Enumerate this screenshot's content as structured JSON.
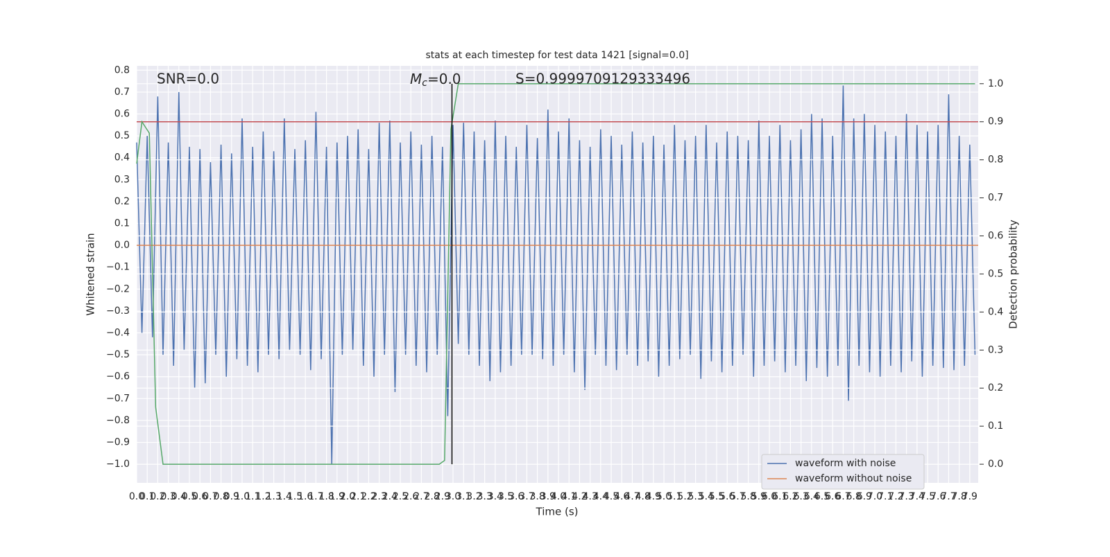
{
  "chart_data": {
    "type": "line",
    "title": "stats at each timestep for test data 1421 [signal=0.0]",
    "xlabel": "Time (s)",
    "ylabel": "Whitened strain",
    "y2label": "Detection probability",
    "annotations": [
      "SNR=0.0",
      {
        "main": "M",
        "sub": "c",
        "rest": "=0.0"
      },
      "S=0.9999709129333496"
    ],
    "xlim": [
      0,
      7.98
    ],
    "ylim": [
      -1.085,
      0.82
    ],
    "y2lim": [
      -0.049,
      1.047
    ],
    "xticks": [
      {
        "value": 0,
        "label": "0.0"
      },
      0.1,
      0.2,
      0.3,
      0.4,
      0.5,
      0.6,
      0.7,
      0.8,
      0.9,
      {
        "value": 1,
        "label": "1.0"
      },
      1.1,
      1.2,
      1.3,
      1.4,
      1.5,
      1.6,
      1.7,
      1.8,
      1.9,
      {
        "value": 2,
        "label": "2.0"
      },
      2.1,
      2.2,
      2.3,
      2.4,
      2.5,
      2.6,
      2.7,
      2.8,
      2.9,
      {
        "value": 3,
        "label": "3.0"
      },
      3.1,
      3.2,
      3.3,
      3.4,
      3.5,
      3.6,
      3.7,
      3.8,
      3.9,
      {
        "value": 4,
        "label": "4.0"
      },
      4.1,
      4.2,
      4.3,
      4.4,
      4.5,
      4.6,
      4.7,
      4.8,
      4.9,
      {
        "value": 5,
        "label": "5.0"
      },
      5.1,
      5.2,
      5.3,
      5.4,
      5.5,
      5.6,
      5.7,
      5.8,
      5.9,
      {
        "value": 6,
        "label": "6.0"
      },
      6.1,
      6.2,
      6.3,
      6.4,
      6.5,
      6.6,
      6.7,
      6.8,
      6.9,
      {
        "value": 7,
        "label": "7.0"
      },
      7.1,
      7.2,
      7.3,
      7.4,
      7.5,
      7.6,
      7.7,
      7.8,
      7.9
    ],
    "yticks": [
      0.8,
      0.7,
      0.6,
      0.5,
      0.4,
      0.3,
      0.2,
      0.1,
      {
        "value": 0,
        "label": "0.0"
      },
      {
        "value": -0.1,
        "label": "−0.1"
      },
      {
        "value": -0.2,
        "label": "−0.2"
      },
      {
        "value": -0.3,
        "label": "−0.3"
      },
      {
        "value": -0.4,
        "label": "−0.4"
      },
      {
        "value": -0.5,
        "label": "−0.5"
      },
      {
        "value": -0.6,
        "label": "−0.6"
      },
      {
        "value": -0.7,
        "label": "−0.7"
      },
      {
        "value": -0.8,
        "label": "−0.8"
      },
      {
        "value": -0.9,
        "label": "−0.9"
      },
      {
        "value": -1,
        "label": "−1.0"
      }
    ],
    "y2ticks": [
      {
        "value": 1,
        "label": "1.0"
      },
      0.9,
      0.8,
      0.7,
      0.6,
      0.5,
      0.4,
      0.3,
      0.2,
      0.1,
      {
        "value": 0,
        "label": "0.0"
      }
    ],
    "grid": true,
    "legend": "lower right",
    "series": [
      {
        "name": "waveform with noise",
        "color": "#4c72b0",
        "x": [
          0,
          0.05,
          0.1,
          0.15,
          0.2,
          0.25,
          0.3,
          0.35,
          0.4,
          0.45,
          0.5,
          0.55,
          0.6,
          0.65,
          0.7,
          0.75,
          0.8,
          0.85,
          0.9,
          0.95,
          1,
          1.05,
          1.1,
          1.15,
          1.2,
          1.25,
          1.3,
          1.35,
          1.4,
          1.45,
          1.5,
          1.55,
          1.6,
          1.65,
          1.7,
          1.75,
          1.8,
          1.85,
          1.9,
          1.95,
          2,
          2.05,
          2.1,
          2.15,
          2.2,
          2.25,
          2.3,
          2.35,
          2.4,
          2.45,
          2.5,
          2.55,
          2.6,
          2.65,
          2.7,
          2.75,
          2.8,
          2.85,
          2.9,
          2.95,
          3,
          3.05,
          3.1,
          3.15,
          3.2,
          3.25,
          3.3,
          3.35,
          3.4,
          3.45,
          3.5,
          3.55,
          3.6,
          3.65,
          3.7,
          3.75,
          3.8,
          3.85,
          3.9,
          3.95,
          4,
          4.05,
          4.1,
          4.15,
          4.2,
          4.25,
          4.3,
          4.35,
          4.4,
          4.45,
          4.5,
          4.55,
          4.6,
          4.65,
          4.7,
          4.75,
          4.8,
          4.85,
          4.9,
          4.95,
          5,
          5.05,
          5.1,
          5.15,
          5.2,
          5.25,
          5.3,
          5.35,
          5.4,
          5.45,
          5.5,
          5.55,
          5.6,
          5.65,
          5.7,
          5.75,
          5.8,
          5.85,
          5.9,
          5.95,
          6,
          6.05,
          6.1,
          6.15,
          6.2,
          6.25,
          6.3,
          6.35,
          6.4,
          6.45,
          6.5,
          6.55,
          6.6,
          6.65,
          6.7,
          6.75,
          6.8,
          6.85,
          6.9,
          6.95,
          7,
          7.05,
          7.1,
          7.15,
          7.2,
          7.25,
          7.3,
          7.35,
          7.4,
          7.45,
          7.5,
          7.55,
          7.6,
          7.65,
          7.7,
          7.75,
          7.8,
          7.85,
          7.9,
          7.95
        ],
        "values": [
          0.47,
          -0.4,
          0.5,
          -0.42,
          0.68,
          -0.5,
          0.47,
          -0.55,
          0.7,
          -0.48,
          0.45,
          -0.65,
          0.44,
          -0.63,
          0.38,
          -0.5,
          0.46,
          -0.6,
          0.42,
          -0.52,
          0.58,
          -0.55,
          0.45,
          -0.58,
          0.52,
          -0.5,
          0.43,
          -0.52,
          0.58,
          -0.48,
          0.44,
          -0.5,
          0.48,
          -0.57,
          0.61,
          -0.52,
          0.45,
          -1.0,
          0.47,
          -0.5,
          0.5,
          -0.48,
          0.53,
          -0.55,
          0.44,
          -0.6,
          0.56,
          -0.5,
          0.57,
          -0.67,
          0.47,
          -0.5,
          0.52,
          -0.55,
          0.46,
          -0.58,
          0.5,
          -0.5,
          0.45,
          -0.78,
          0.55,
          -0.45,
          0.56,
          -0.5,
          0.52,
          -0.55,
          0.48,
          -0.62,
          0.57,
          -0.58,
          0.5,
          -0.55,
          0.45,
          -0.5,
          0.55,
          -0.5,
          0.49,
          -0.52,
          0.62,
          -0.55,
          0.52,
          -0.5,
          0.58,
          -0.58,
          0.48,
          -0.66,
          0.45,
          -0.5,
          0.53,
          -0.55,
          0.5,
          -0.57,
          0.46,
          -0.5,
          0.52,
          -0.55,
          0.47,
          -0.53,
          0.5,
          -0.6,
          0.46,
          -0.55,
          0.55,
          -0.52,
          0.48,
          -0.5,
          0.5,
          -0.61,
          0.55,
          -0.53,
          0.47,
          -0.58,
          0.52,
          -0.55,
          0.5,
          -0.5,
          0.48,
          -0.6,
          0.57,
          -0.55,
          0.5,
          -0.53,
          0.55,
          -0.58,
          0.48,
          -0.55,
          0.53,
          -0.62,
          0.6,
          -0.56,
          0.58,
          -0.6,
          0.5,
          -0.55,
          0.73,
          -0.71,
          0.58,
          -0.55,
          0.6,
          -0.58,
          0.55,
          -0.6,
          0.52,
          -0.55,
          0.5,
          -0.58,
          0.6,
          -0.53,
          0.55,
          -0.6,
          0.52,
          -0.55,
          0.55,
          -0.56,
          0.69,
          -0.57,
          0.5,
          -0.55,
          0.46,
          -0.5
        ]
      },
      {
        "name": "waveform without noise",
        "color": "#dd8452",
        "x": [
          0,
          7.98
        ],
        "values": [
          0,
          0
        ]
      }
    ],
    "threshold": {
      "color": "#c44e52",
      "axis": "y2",
      "x": [
        0,
        7.98
      ],
      "values": [
        0.9,
        0.9
      ]
    },
    "probability": {
      "color": "#55a868",
      "axis": "y2",
      "x": [
        0,
        0.05,
        0.12,
        0.18,
        0.25,
        0.5,
        1.0,
        2.0,
        2.87,
        2.92,
        2.98,
        3.05,
        7.95
      ],
      "values": [
        0.79,
        0.9,
        0.87,
        0.15,
        0.0,
        0.0,
        0.0,
        0.0,
        0.0,
        0.01,
        0.88,
        1.0,
        1.0
      ]
    },
    "marker": {
      "color": "#000000",
      "axis": "y2",
      "x": [
        2.99,
        2.99
      ],
      "values": [
        0,
        1
      ]
    }
  }
}
